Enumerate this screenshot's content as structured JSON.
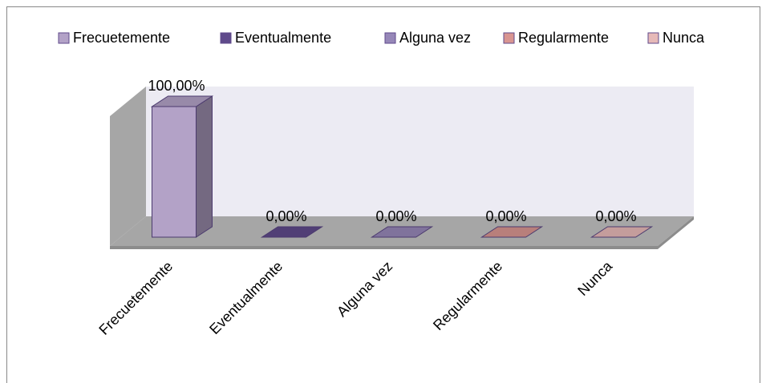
{
  "chart_data": {
    "type": "bar3d",
    "categories": [
      "Frecuetemente",
      "Eventualmente",
      "Alguna vez",
      "Regularmente",
      "Nunca"
    ],
    "values": [
      100,
      0,
      0,
      0,
      0
    ],
    "value_labels": [
      "100,00%",
      "0,00%",
      "0,00%",
      "0,00%",
      "0,00%"
    ],
    "colors": [
      "#b3a2c7",
      "#5f4a8b",
      "#9687b8",
      "#d99591",
      "#e6b9b8"
    ],
    "legend": "top"
  }
}
